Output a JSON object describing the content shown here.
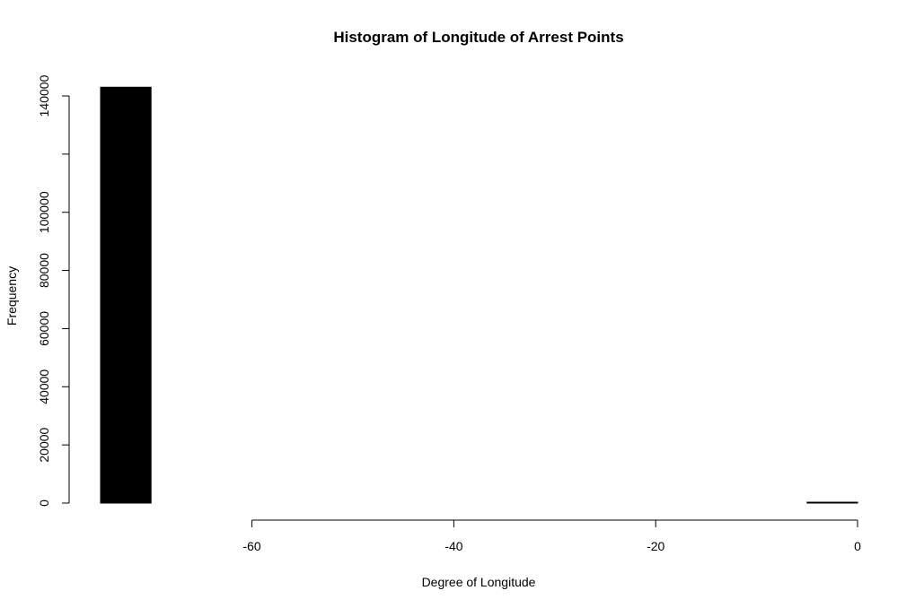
{
  "chart_data": {
    "type": "bar",
    "title": "Histogram of Longitude of Arrest Points",
    "xlabel": "Degree of Longitude",
    "ylabel": "Frequency",
    "xlim": [
      -75,
      0
    ],
    "ylim": [
      0,
      140000
    ],
    "x_ticks": [
      -60,
      -40,
      -20,
      0
    ],
    "x_tick_labels": [
      "-60",
      "-40",
      "-20",
      "0"
    ],
    "y_ticks": [
      0,
      20000,
      40000,
      60000,
      80000,
      100000,
      120000,
      140000
    ],
    "y_tick_labels": [
      "0",
      "20000",
      "40000",
      "60000",
      "80000",
      "100000",
      "",
      "140000"
    ],
    "bins": [
      {
        "x0": -75,
        "x1": -70,
        "count": 143000
      },
      {
        "x0": -70,
        "x1": -65,
        "count": 0
      },
      {
        "x0": -65,
        "x1": -60,
        "count": 0
      },
      {
        "x0": -60,
        "x1": -55,
        "count": 0
      },
      {
        "x0": -55,
        "x1": -50,
        "count": 0
      },
      {
        "x0": -50,
        "x1": -45,
        "count": 0
      },
      {
        "x0": -45,
        "x1": -40,
        "count": 0
      },
      {
        "x0": -40,
        "x1": -35,
        "count": 0
      },
      {
        "x0": -35,
        "x1": -30,
        "count": 0
      },
      {
        "x0": -30,
        "x1": -25,
        "count": 0
      },
      {
        "x0": -25,
        "x1": -20,
        "count": 0
      },
      {
        "x0": -20,
        "x1": -15,
        "count": 0
      },
      {
        "x0": -15,
        "x1": -10,
        "count": 0
      },
      {
        "x0": -10,
        "x1": -5,
        "count": 0
      },
      {
        "x0": -5,
        "x1": 0,
        "count": 300
      }
    ],
    "bar_color": "#000000",
    "grid": false,
    "legend": "none"
  }
}
